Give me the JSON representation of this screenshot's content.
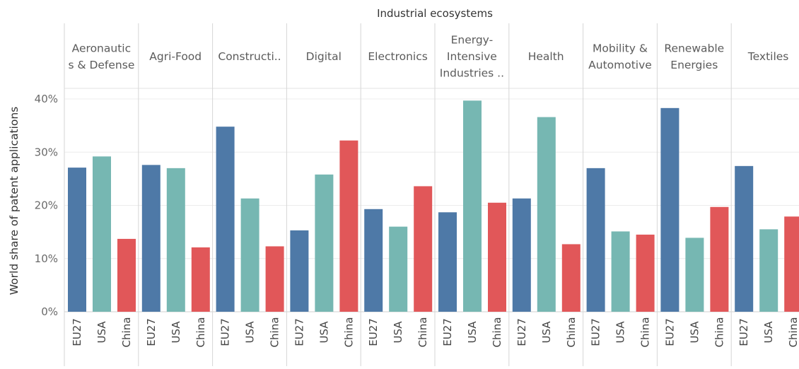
{
  "chart_data": {
    "type": "bar",
    "title": "Industrial ecosystems",
    "ylabel": "World share of patent applications",
    "xlabel": "",
    "ylim": [
      0,
      0.42
    ],
    "yticks": [
      {
        "value": 0.0,
        "label": "0%"
      },
      {
        "value": 0.1,
        "label": "10%"
      },
      {
        "value": 0.2,
        "label": "20%"
      },
      {
        "value": 0.3,
        "label": "30%"
      },
      {
        "value": 0.4,
        "label": "40%"
      }
    ],
    "grid": true,
    "categories": [
      "EU27",
      "USA",
      "China"
    ],
    "colors": {
      "EU27": "#4e79a7",
      "USA": "#76b7b2",
      "China": "#e15759"
    },
    "panels": [
      {
        "label": [
          "Aeronautic",
          "s & Defense"
        ],
        "values": [
          0.271,
          0.292,
          0.137
        ]
      },
      {
        "label": [
          "Agri-Food"
        ],
        "values": [
          0.276,
          0.27,
          0.121
        ]
      },
      {
        "label": [
          "Constructi.."
        ],
        "values": [
          0.348,
          0.213,
          0.123
        ]
      },
      {
        "label": [
          "Digital"
        ],
        "values": [
          0.153,
          0.258,
          0.322
        ]
      },
      {
        "label": [
          "Electronics"
        ],
        "values": [
          0.193,
          0.16,
          0.236
        ]
      },
      {
        "label": [
          "Energy-",
          "Intensive",
          "Industries .."
        ],
        "values": [
          0.187,
          0.397,
          0.205
        ]
      },
      {
        "label": [
          "Health"
        ],
        "values": [
          0.213,
          0.366,
          0.127
        ]
      },
      {
        "label": [
          "Mobility &",
          "Automotive"
        ],
        "values": [
          0.27,
          0.151,
          0.145
        ]
      },
      {
        "label": [
          "Renewable",
          "Energies"
        ],
        "values": [
          0.383,
          0.139,
          0.197
        ]
      },
      {
        "label": [
          "Textiles"
        ],
        "values": [
          0.274,
          0.155,
          0.179
        ]
      }
    ]
  }
}
